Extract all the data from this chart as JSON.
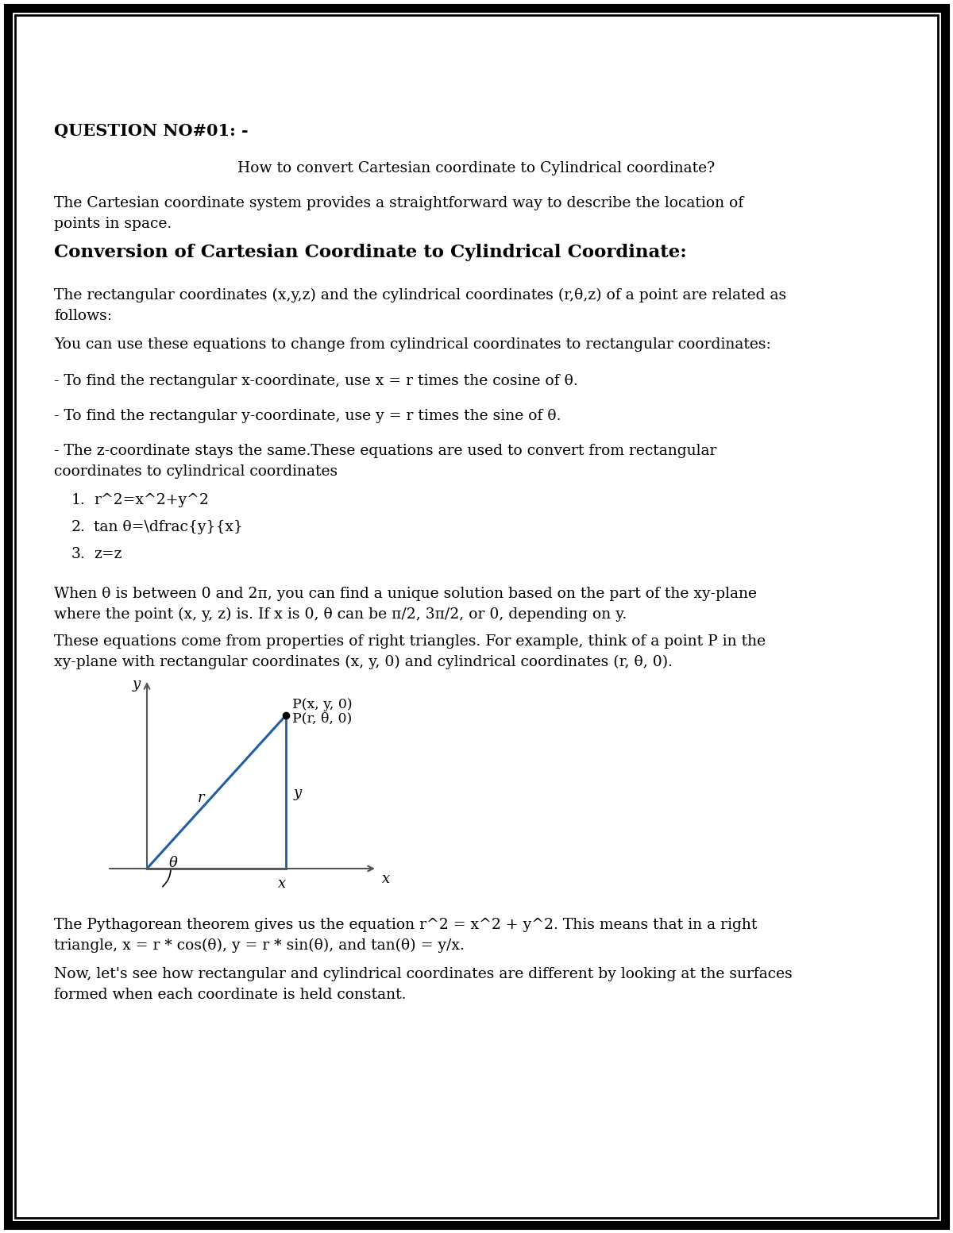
{
  "page_bg": "#ffffff",
  "border_color": "#000000",
  "text_color": "#000000",
  "title": "QUESTION NO#01: -",
  "subtitle": "How to convert Cartesian coordinate to Cylindrical coordinate?",
  "section_heading": "Conversion of Cartesian Coordinate to Cylindrical Coordinate:",
  "para1": "The Cartesian coordinate system provides a straightforward way to describe the location of\npoints in space.",
  "para2": "The rectangular coordinates (x,y,z) and the cylindrical coordinates (r,θ,z) of a point are related as\nfollows:",
  "para3": "You can use these equations to change from cylindrical coordinates to rectangular coordinates:",
  "bullet1": "- To find the rectangular x-coordinate, use x = r times the cosine of θ.",
  "bullet2": "- To find the rectangular y-coordinate, use y = r times the sine of θ.",
  "bullet3": "- The z-coordinate stays the same.These equations are used to convert from rectangular\ncoordinates to cylindrical coordinates",
  "list_item1": "r^2=x^2+y^2",
  "list_item2": "tan θ=\\dfrac{y}{x}",
  "list_item3": "z=z",
  "para4": "When θ is between 0 and 2π, you can find a unique solution based on the part of the xy-plane\nwhere the point (x, y, z) is. If x is 0, θ can be π/2, 3π/2, or 0, depending on y.",
  "para5": "These equations come from properties of right triangles. For example, think of a point P in the\nxy-plane with rectangular coordinates (x, y, 0) and cylindrical coordinates (r, θ, 0).",
  "para6": "The Pythagorean theorem gives us the equation r^2 = x^2 + y^2. This means that in a right\ntriangle, x = r * cos(θ), y = r * sin(θ), and tan(θ) = y/x.",
  "para7": "Now, let's see how rectangular and cylindrical coordinates are different by looking at the surfaces\nformed when each coordinate is held constant.",
  "diagram_label_Pxy": "P(x, y, 0)",
  "diagram_label_Prt": "P(r, θ, 0)",
  "diagram_label_r": "r",
  "diagram_label_y_line": "y",
  "diagram_label_x_axis_end": "x",
  "diagram_label_x_below": "x",
  "diagram_label_theta": "θ",
  "diagram_label_y_axis": "y",
  "line_color": "#1f5fa6",
  "axis_color": "#555555"
}
